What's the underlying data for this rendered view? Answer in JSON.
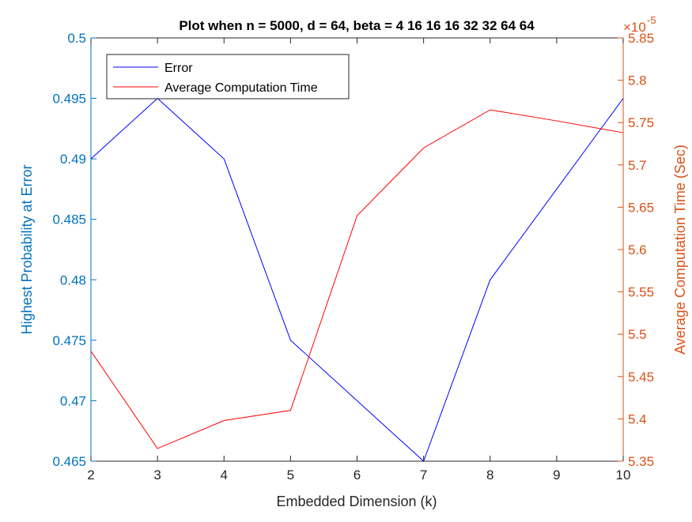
{
  "colors": {
    "left_axis": "#0072BD",
    "right_axis": "#D95319",
    "error_line": "#0000FF",
    "time_line": "#FF0000",
    "x_axis": "#262626"
  },
  "chart_data": {
    "type": "line",
    "title": "Plot when n = 5000, d = 64, beta = 4  16  16  16  32  32  64  64",
    "xlabel": "Embedded Dimension (k)",
    "ylabel_left": "Highest Probability at Error",
    "ylabel_right": "Average Computation Time (Sec)",
    "right_exponent_label": "×10",
    "right_exponent_power": "-5",
    "x": [
      2,
      3,
      4,
      5,
      6,
      7,
      8,
      9,
      10
    ],
    "xlim": [
      2,
      10
    ],
    "ylim_left": [
      0.465,
      0.5
    ],
    "ylim_right": [
      5.35,
      5.85
    ],
    "x_ticks": [
      "2",
      "3",
      "4",
      "5",
      "6",
      "7",
      "8",
      "9",
      "10"
    ],
    "y_ticks_left": [
      "0.465",
      "0.47",
      "0.475",
      "0.48",
      "0.485",
      "0.49",
      "0.495",
      "0.5"
    ],
    "y_ticks_right": [
      "5.35",
      "5.4",
      "5.45",
      "5.5",
      "5.55",
      "5.6",
      "5.65",
      "5.7",
      "5.75",
      "5.8",
      "5.85"
    ],
    "legend_position": "top-left",
    "grid": false,
    "series": [
      {
        "name": "Error",
        "axis": "left",
        "values": [
          0.49,
          0.495,
          0.49,
          0.475,
          0.47,
          0.465,
          0.48,
          0.4875,
          0.495
        ]
      },
      {
        "name": "Average Computation Time",
        "axis": "right",
        "values": [
          5.48,
          5.365,
          5.398,
          5.41,
          5.64,
          5.72,
          5.765,
          5.752,
          5.738
        ]
      }
    ]
  }
}
